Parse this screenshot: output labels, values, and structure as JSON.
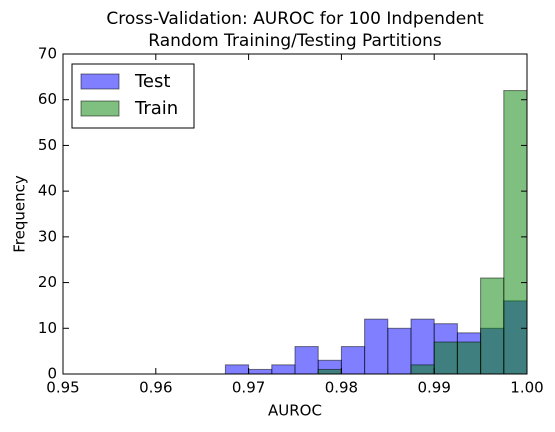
{
  "chart_data": {
    "type": "histogram",
    "title": [
      "Cross-Validation: AUROC for 100 Indpendent",
      "Random Training/Testing Partitions"
    ],
    "xlabel": "AUROC",
    "ylabel": "Frequency",
    "bins": [
      0.95,
      0.9525,
      0.955,
      0.9575,
      0.96,
      0.9625,
      0.965,
      0.9675,
      0.97,
      0.9725,
      0.975,
      0.9775,
      0.98,
      0.9825,
      0.985,
      0.9875,
      0.99,
      0.9925,
      0.995,
      0.9975,
      1.0
    ],
    "series": [
      {
        "name": "Test",
        "color": "#0000ff",
        "values": [
          0,
          0,
          0,
          0,
          0,
          0,
          0,
          2,
          1,
          2,
          6,
          3,
          6,
          12,
          10,
          12,
          11,
          9,
          10,
          16
        ]
      },
      {
        "name": "Train",
        "color": "#008000",
        "values": [
          0,
          0,
          0,
          0,
          0,
          0,
          0,
          0,
          0,
          0,
          0,
          1,
          0,
          0,
          0,
          2,
          7,
          7,
          21,
          62
        ]
      }
    ],
    "xlim": [
      0.95,
      1.0
    ],
    "xticks": [
      0.95,
      0.96,
      0.97,
      0.98,
      0.99,
      {
        "value": 1.0,
        "label": "1.00"
      }
    ],
    "ylim": [
      0,
      70
    ],
    "yticks": [
      0,
      10,
      20,
      30,
      40,
      50,
      60,
      70
    ],
    "legend": "upper left"
  }
}
